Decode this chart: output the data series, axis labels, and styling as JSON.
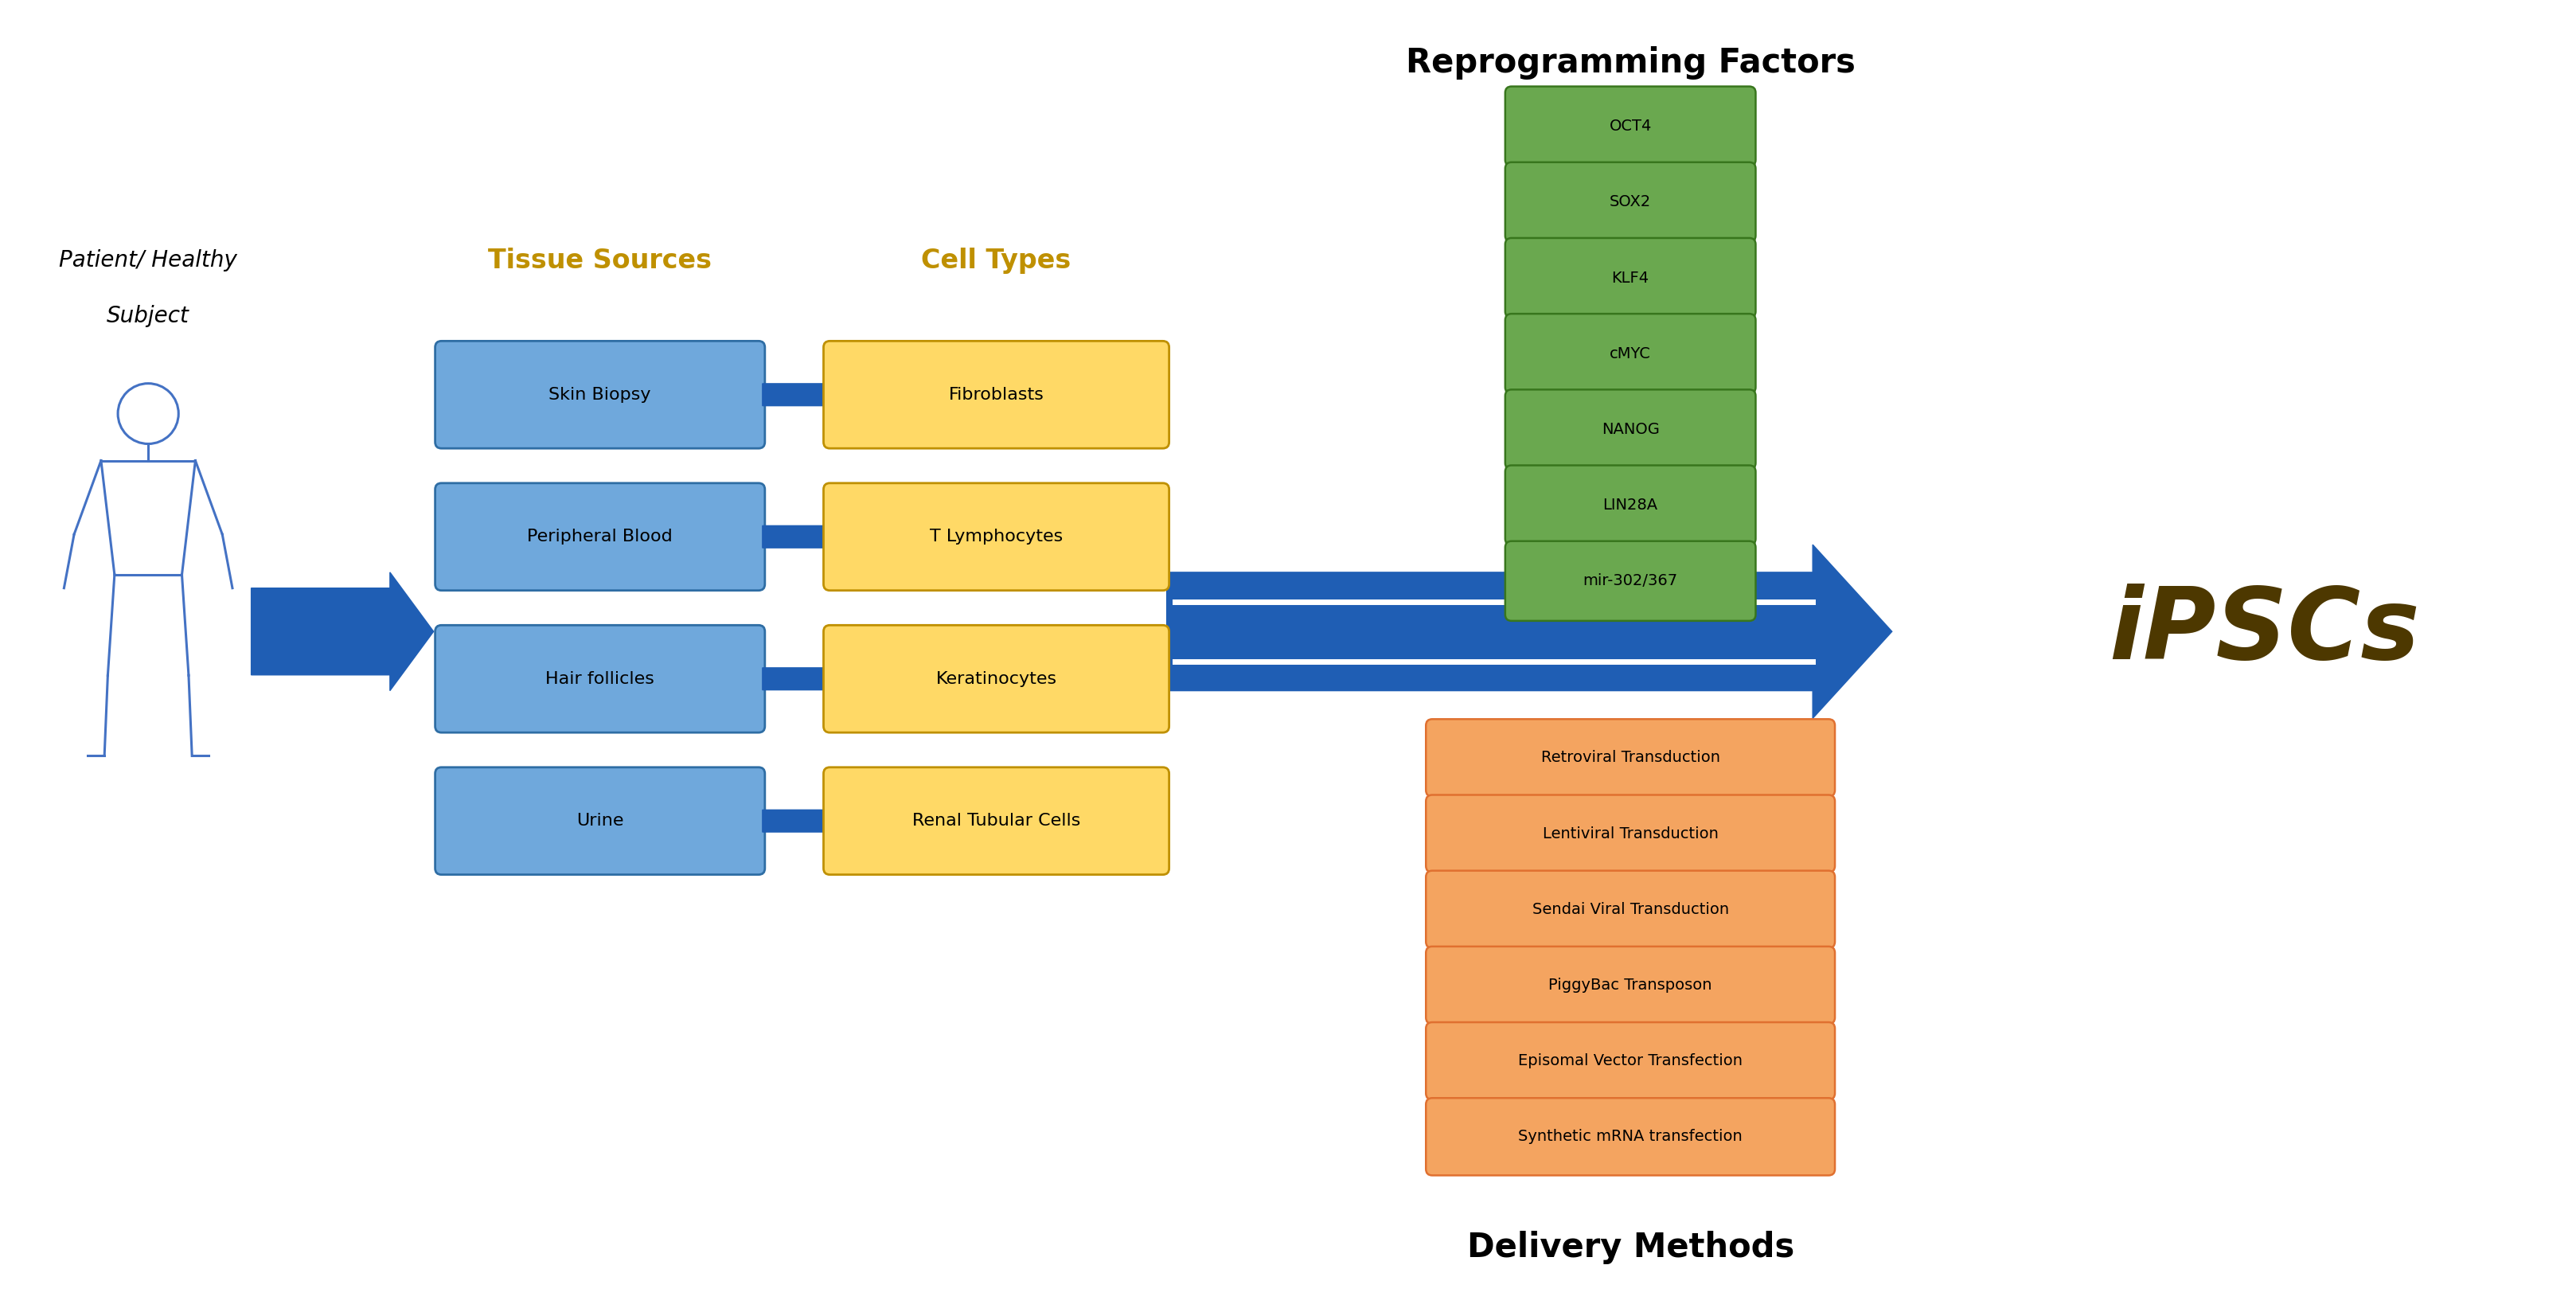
{
  "fig_width": 32.36,
  "fig_height": 16.43,
  "bg_color": "#ffffff",
  "title_reprogramming": "Reprogramming Factors",
  "title_delivery": "Delivery Methods",
  "title_reprogramming_fontsize": 30,
  "title_delivery_fontsize": 30,
  "patient_label_line1": "Patient/ Healthy",
  "patient_label_line2": "Subject",
  "tissue_label": "Tissue Sources",
  "cell_label": "Cell Types",
  "ipscs_label": "iPSCs",
  "tissue_sources": [
    "Skin Biopsy",
    "Peripheral Blood",
    "Hair follicles",
    "Urine"
  ],
  "cell_types": [
    "Fibroblasts",
    "T Lymphocytes",
    "Keratinocytes",
    "Renal Tubular Cells"
  ],
  "reprogramming_factors": [
    "OCT4",
    "SOX2",
    "KLF4",
    "cMYC",
    "NANOG",
    "LIN28A",
    "mir-302/367"
  ],
  "delivery_methods": [
    "Retroviral Transduction",
    "Lentiviral Transduction",
    "Sendai Viral Transduction",
    "PiggyBac Transposon",
    "Episomal Vector Transfection",
    "Synthetic mRNA transfection"
  ],
  "blue_box_color": "#6fa8dc",
  "blue_box_edge": "#2e6da4",
  "yellow_box_color": "#ffd966",
  "yellow_box_edge": "#bf9000",
  "green_box_color": "#6aa84f",
  "green_box_edge": "#38761d",
  "orange_box_color": "#f4a460",
  "orange_box_edge": "#e07030",
  "arrow_color": "#1f5eb4",
  "tissue_label_color": "#bf9000",
  "cell_label_color": "#bf9000",
  "patient_label_color": "#000000",
  "ipscs_color": "#4d3800",
  "human_color": "#4472c4"
}
